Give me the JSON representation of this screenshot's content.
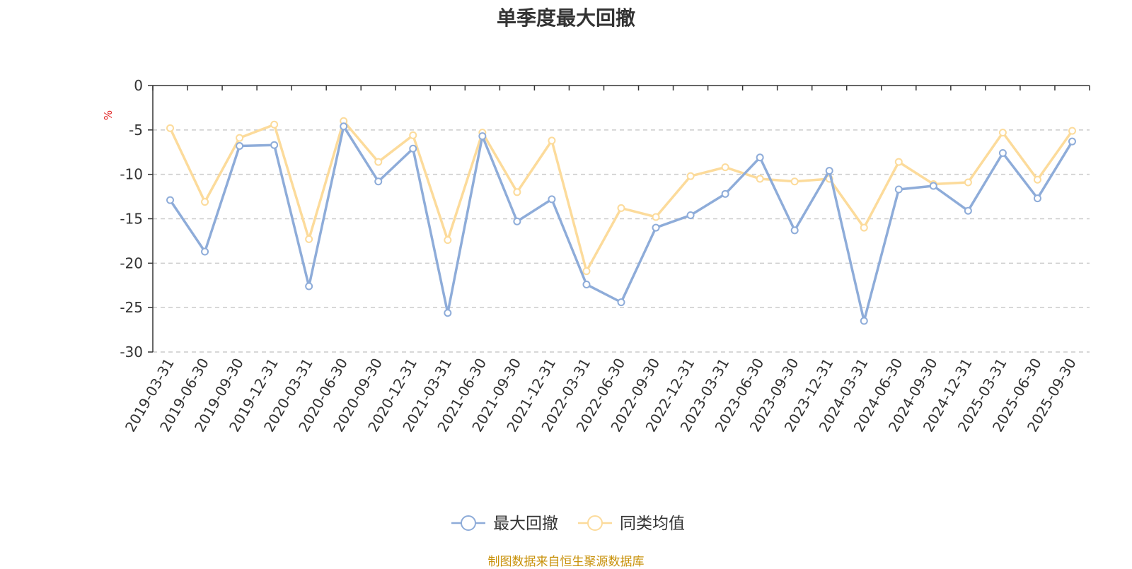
{
  "title": "单季度最大回撤",
  "source": "制图数据来自恒生聚源数据库",
  "chart_data": {
    "type": "line",
    "title": "单季度最大回撤",
    "ylabel": "%",
    "xlabel": "",
    "ylim": [
      -30,
      0
    ],
    "yticks": [
      0,
      -5,
      -10,
      -15,
      -20,
      -25,
      -30
    ],
    "grid": true,
    "legend_position": "bottom-center",
    "categories": [
      "2019-03-31",
      "2019-06-30",
      "2019-09-30",
      "2019-12-31",
      "2020-03-31",
      "2020-06-30",
      "2020-09-30",
      "2020-12-31",
      "2021-03-31",
      "2021-06-30",
      "2021-09-30",
      "2021-12-31",
      "2022-03-31",
      "2022-06-30",
      "2022-09-30",
      "2022-12-31",
      "2023-03-31",
      "2023-06-30",
      "2023-09-30",
      "2023-12-31",
      "2024-03-31",
      "2024-06-30",
      "2024-09-30",
      "2024-12-31",
      "2025-03-31",
      "2025-06-30",
      "2025-09-30"
    ],
    "series": [
      {
        "name": "最大回撤",
        "color": "#8eacd9",
        "values": [
          -12.9,
          -18.7,
          -6.8,
          -6.7,
          -22.6,
          -4.6,
          -10.8,
          -7.1,
          -25.6,
          -5.7,
          -15.3,
          -12.8,
          -22.4,
          -24.4,
          -16.0,
          -14.6,
          -12.2,
          -8.1,
          -16.3,
          -9.6,
          -26.5,
          -11.7,
          -11.3,
          -14.1,
          -7.6,
          -12.7,
          -6.3
        ]
      },
      {
        "name": "同类均值",
        "color": "#fcdb9b",
        "values": [
          -4.8,
          -13.1,
          -5.9,
          -4.4,
          -17.3,
          -4.0,
          -8.6,
          -5.6,
          -17.4,
          -5.3,
          -12.0,
          -6.2,
          -20.9,
          -13.8,
          -14.8,
          -10.2,
          -9.2,
          -10.5,
          -10.8,
          -10.5,
          -16.0,
          -8.6,
          -11.1,
          -10.9,
          -5.3,
          -10.6,
          -5.1
        ]
      }
    ]
  }
}
